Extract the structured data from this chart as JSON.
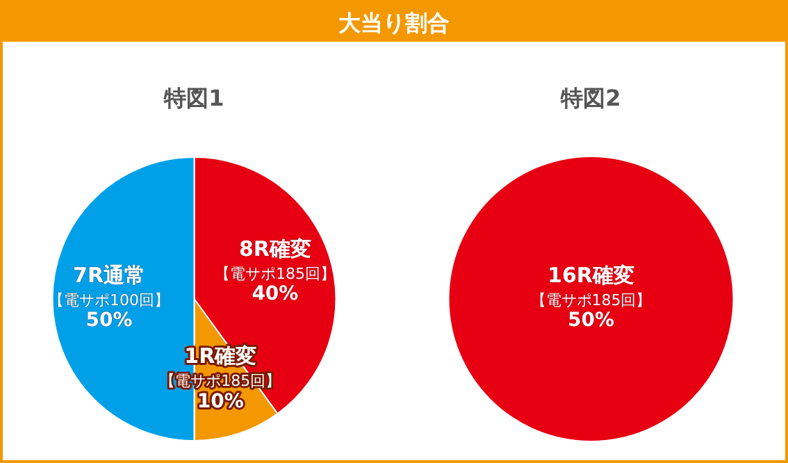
{
  "chart_data": [
    {
      "type": "pie",
      "title": "大当り割合",
      "subtitle": "特図1",
      "categories": [
        "8R確変",
        "1R確変",
        "7R通常"
      ],
      "values": [
        40,
        10,
        50
      ],
      "colors": [
        "#e60012",
        "#f39800",
        "#00a0e9"
      ],
      "value_labels": [
        "40%",
        "10%",
        "50%"
      ],
      "annotations": [
        {
          "text": "【電サポ185回】",
          "x": "8R確変"
        },
        {
          "text": "【電サポ185回】",
          "x": "1R確変"
        },
        {
          "text": "【電サポ100回】",
          "x": "7R通常"
        }
      ]
    },
    {
      "type": "pie",
      "subtitle": "特図2",
      "categories": [
        "16R確変"
      ],
      "values": [
        50
      ],
      "colors": [
        "#e60012"
      ],
      "value_labels": [
        "50%"
      ],
      "annotations": [
        {
          "text": "【電サポ185回】",
          "x": "16R確変"
        }
      ]
    }
  ]
}
